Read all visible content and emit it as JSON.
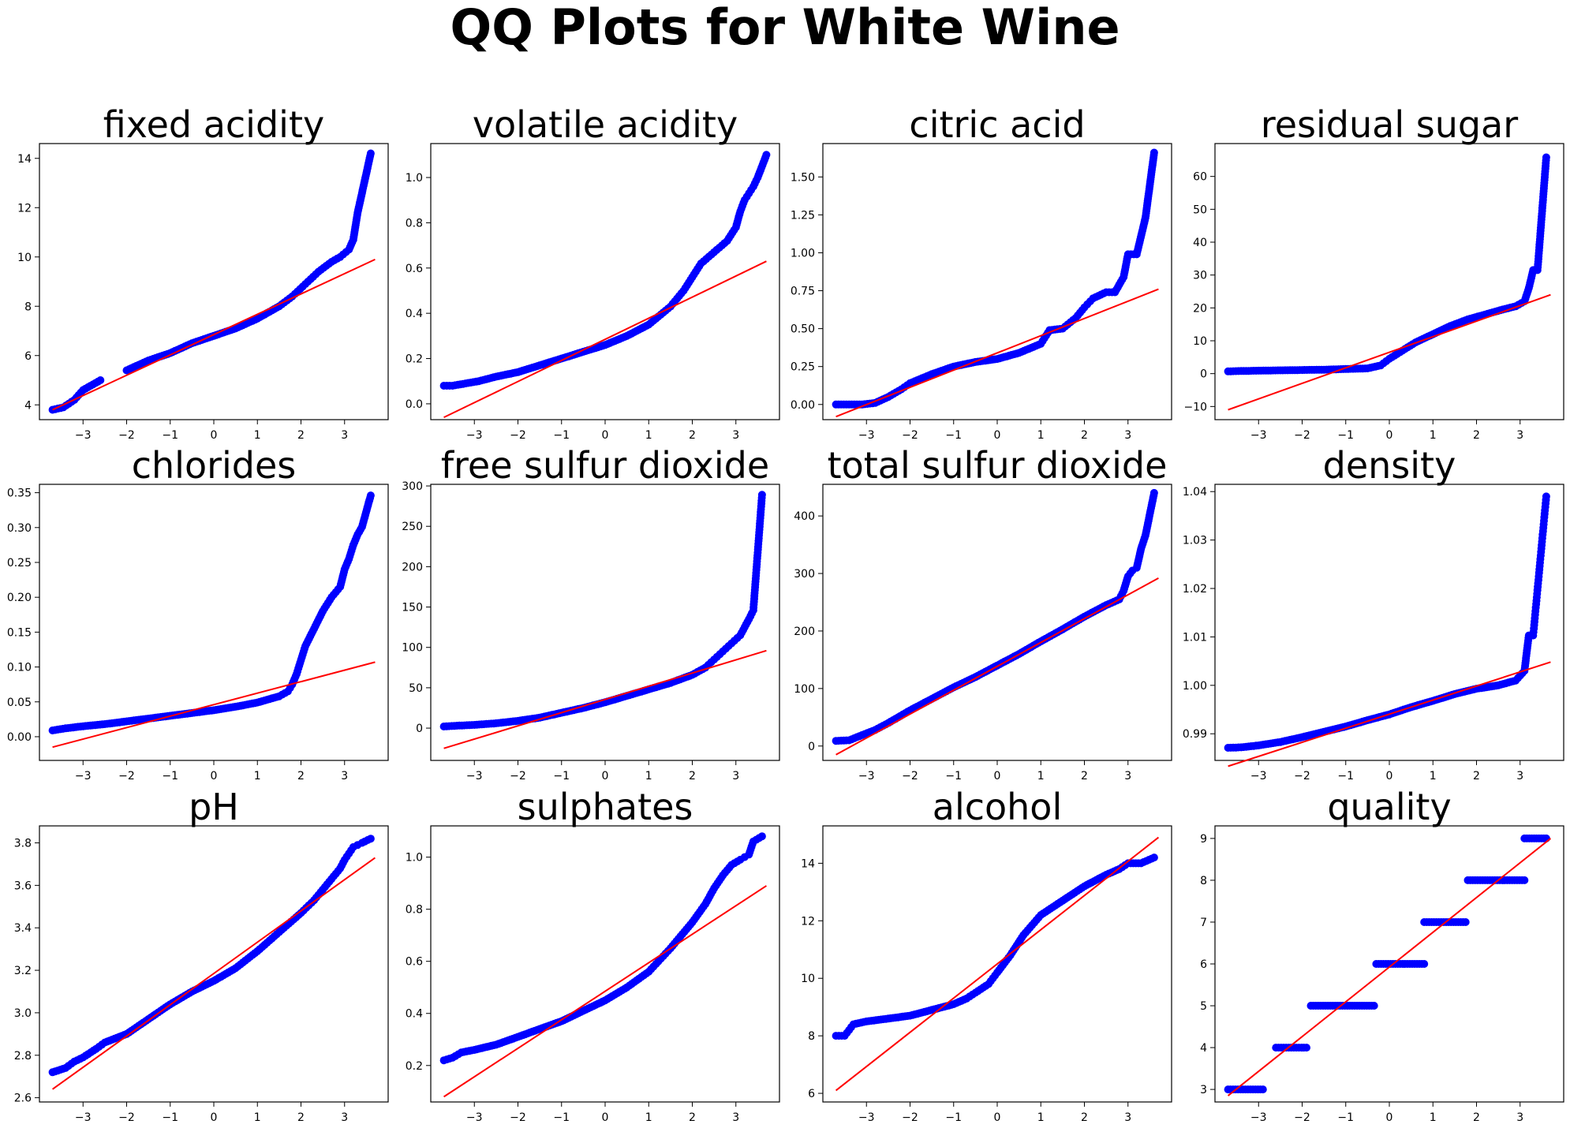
{
  "figure": {
    "title": "QQ Plots for White Wine",
    "colors": {
      "points": "#0000ff",
      "fit_line": "#ff0000",
      "frame": "#000000"
    }
  },
  "chart_data": [
    {
      "type": "scatter",
      "title": "fixed acidity",
      "xticks": [
        -3,
        -2,
        -1,
        0,
        1,
        2,
        3
      ],
      "yticks": [
        4,
        6,
        8,
        10,
        12,
        14
      ],
      "ytick_labels": [
        "4",
        "6",
        "8",
        "10",
        "12",
        "14"
      ],
      "xlim": [
        -4.0,
        4.0
      ],
      "ylim": [
        3.4,
        14.6
      ],
      "fit_line": {
        "x": [
          -3.7,
          3.7
        ],
        "y": [
          3.8,
          9.9
        ]
      },
      "points": {
        "x": [
          -3.7,
          -3.45,
          -3.2,
          -3.0,
          -2.6,
          -2.0,
          -1.5,
          -1.0,
          -0.5,
          0.0,
          0.5,
          1.0,
          1.5,
          1.8,
          2.1,
          2.4,
          2.7,
          2.9,
          3.1,
          3.2,
          3.3,
          3.6
        ],
        "y": [
          3.8,
          3.9,
          4.2,
          4.6,
          5.0,
          5.4,
          5.8,
          6.1,
          6.5,
          6.8,
          7.1,
          7.5,
          8.0,
          8.4,
          8.9,
          9.4,
          9.8,
          10.0,
          10.3,
          10.7,
          11.8,
          14.2
        ]
      }
    },
    {
      "type": "scatter",
      "title": "volatile acidity",
      "xticks": [
        -3,
        -2,
        -1,
        0,
        1,
        2,
        3
      ],
      "yticks": [
        0.0,
        0.2,
        0.4,
        0.6,
        0.8,
        1.0
      ],
      "ytick_labels": [
        "0.0",
        "0.2",
        "0.4",
        "0.6",
        "0.8",
        "1.0"
      ],
      "xlim": [
        -4.0,
        4.0
      ],
      "ylim": [
        -0.07,
        1.15
      ],
      "fit_line": {
        "x": [
          -3.7,
          3.7
        ],
        "y": [
          -0.06,
          0.63
        ]
      },
      "points": {
        "x": [
          -3.7,
          -3.5,
          -3.2,
          -2.9,
          -2.5,
          -2.0,
          -1.5,
          -1.0,
          -0.5,
          0.0,
          0.5,
          1.0,
          1.5,
          1.8,
          2.0,
          2.2,
          2.5,
          2.8,
          3.0,
          3.1,
          3.2,
          3.3,
          3.4,
          3.5,
          3.7
        ],
        "y": [
          0.08,
          0.08,
          0.09,
          0.1,
          0.12,
          0.14,
          0.17,
          0.2,
          0.23,
          0.26,
          0.3,
          0.35,
          0.43,
          0.5,
          0.56,
          0.62,
          0.67,
          0.72,
          0.78,
          0.85,
          0.9,
          0.93,
          0.96,
          1.0,
          1.1
        ]
      }
    },
    {
      "type": "scatter",
      "title": "citric acid",
      "xticks": [
        -3,
        -2,
        -1,
        0,
        1,
        2,
        3
      ],
      "yticks": [
        0.0,
        0.25,
        0.5,
        0.75,
        1.0,
        1.25,
        1.5
      ],
      "ytick_labels": [
        "0.00",
        "0.25",
        "0.50",
        "0.75",
        "1.00",
        "1.25",
        "1.50"
      ],
      "xlim": [
        -4.0,
        4.0
      ],
      "ylim": [
        -0.1,
        1.72
      ],
      "fit_line": {
        "x": [
          -3.7,
          3.7
        ],
        "y": [
          -0.08,
          0.76
        ]
      },
      "points": {
        "x": [
          -3.7,
          -3.4,
          -3.1,
          -2.8,
          -2.5,
          -2.2,
          -2.0,
          -1.5,
          -1.0,
          -0.5,
          0.0,
          0.5,
          1.0,
          1.2,
          1.5,
          1.8,
          2.0,
          2.2,
          2.5,
          2.7,
          2.9,
          3.0,
          3.2,
          3.4,
          3.6
        ],
        "y": [
          0.0,
          0.0,
          0.0,
          0.01,
          0.05,
          0.1,
          0.14,
          0.2,
          0.25,
          0.28,
          0.3,
          0.34,
          0.4,
          0.49,
          0.5,
          0.57,
          0.64,
          0.7,
          0.74,
          0.74,
          0.84,
          0.99,
          0.99,
          1.23,
          1.66
        ]
      }
    },
    {
      "type": "scatter",
      "title": "residual sugar",
      "xticks": [
        -3,
        -2,
        -1,
        0,
        1,
        2,
        3
      ],
      "yticks": [
        -10,
        0,
        10,
        20,
        30,
        40,
        50,
        60
      ],
      "ytick_labels": [
        "−10",
        "0",
        "10",
        "20",
        "30",
        "40",
        "50",
        "60"
      ],
      "xlim": [
        -4.0,
        4.0
      ],
      "ylim": [
        -14,
        70
      ],
      "fit_line": {
        "x": [
          -3.7,
          3.7
        ],
        "y": [
          -11,
          24
        ]
      },
      "points": {
        "x": [
          -3.7,
          -3.4,
          -3.0,
          -2.5,
          -2.0,
          -1.5,
          -1.0,
          -0.5,
          -0.2,
          0.0,
          0.3,
          0.6,
          1.0,
          1.4,
          1.8,
          2.2,
          2.6,
          2.9,
          3.1,
          3.2,
          3.3,
          3.4,
          3.6
        ],
        "y": [
          0.7,
          0.8,
          0.9,
          1.0,
          1.1,
          1.2,
          1.4,
          1.6,
          2.5,
          4.5,
          7.0,
          9.5,
          12.0,
          14.5,
          16.5,
          18.0,
          19.5,
          20.5,
          22.0,
          26.0,
          31.5,
          31.5,
          65.8
        ]
      }
    },
    {
      "type": "scatter",
      "title": "chlorides",
      "xticks": [
        -3,
        -2,
        -1,
        0,
        1,
        2,
        3
      ],
      "yticks": [
        0.0,
        0.05,
        0.1,
        0.15,
        0.2,
        0.25,
        0.3,
        0.35
      ],
      "ytick_labels": [
        "0.00",
        "0.05",
        "0.10",
        "0.15",
        "0.20",
        "0.25",
        "0.30",
        "0.35"
      ],
      "xlim": [
        -4.0,
        4.0
      ],
      "ylim": [
        -0.034,
        0.362
      ],
      "fit_line": {
        "x": [
          -3.7,
          3.7
        ],
        "y": [
          -0.015,
          0.107
        ]
      },
      "points": {
        "x": [
          -3.7,
          -3.4,
          -3.0,
          -2.5,
          -2.0,
          -1.5,
          -1.0,
          -0.5,
          0.0,
          0.5,
          1.0,
          1.5,
          1.7,
          1.8,
          1.9,
          2.0,
          2.1,
          2.3,
          2.5,
          2.7,
          2.9,
          3.0,
          3.1,
          3.2,
          3.3,
          3.4,
          3.6
        ],
        "y": [
          0.009,
          0.012,
          0.015,
          0.018,
          0.022,
          0.026,
          0.03,
          0.034,
          0.038,
          0.043,
          0.049,
          0.058,
          0.065,
          0.075,
          0.09,
          0.11,
          0.13,
          0.155,
          0.18,
          0.2,
          0.215,
          0.24,
          0.255,
          0.275,
          0.29,
          0.301,
          0.346
        ]
      }
    },
    {
      "type": "scatter",
      "title": "free sulfur dioxide",
      "xticks": [
        -3,
        -2,
        -1,
        0,
        1,
        2,
        3
      ],
      "yticks": [
        0,
        50,
        100,
        150,
        200,
        250,
        300
      ],
      "ytick_labels": [
        "0",
        "50",
        "100",
        "150",
        "200",
        "250",
        "300"
      ],
      "xlim": [
        -4.0,
        4.0
      ],
      "ylim": [
        -40,
        302
      ],
      "fit_line": {
        "x": [
          -3.7,
          3.7
        ],
        "y": [
          -25,
          96
        ]
      },
      "points": {
        "x": [
          -3.7,
          -3.4,
          -3.0,
          -2.5,
          -2.0,
          -1.5,
          -1.0,
          -0.5,
          0.0,
          0.5,
          1.0,
          1.5,
          2.0,
          2.3,
          2.5,
          2.7,
          2.9,
          3.1,
          3.2,
          3.3,
          3.4,
          3.6
        ],
        "y": [
          2,
          3,
          4,
          6,
          9,
          13,
          19,
          25,
          32,
          40,
          48,
          56,
          66,
          75,
          85,
          95,
          105,
          115,
          125,
          135,
          146,
          289
        ]
      }
    },
    {
      "type": "scatter",
      "title": "total sulfur dioxide",
      "xticks": [
        -3,
        -2,
        -1,
        0,
        1,
        2,
        3
      ],
      "yticks": [
        0,
        100,
        200,
        300,
        400
      ],
      "ytick_labels": [
        "0",
        "100",
        "200",
        "300",
        "400"
      ],
      "xlim": [
        -4.0,
        4.0
      ],
      "ylim": [
        -25,
        455
      ],
      "fit_line": {
        "x": [
          -3.7,
          3.7
        ],
        "y": [
          -15,
          292
        ]
      },
      "points": {
        "x": [
          -3.7,
          -3.4,
          -3.1,
          -2.8,
          -2.5,
          -2.0,
          -1.5,
          -1.0,
          -0.5,
          0.0,
          0.5,
          1.0,
          1.5,
          2.0,
          2.5,
          2.8,
          2.9,
          3.0,
          3.1,
          3.2,
          3.3,
          3.4,
          3.6
        ],
        "y": [
          9,
          10,
          19,
          28,
          40,
          62,
          82,
          102,
          120,
          140,
          160,
          182,
          203,
          225,
          245,
          255,
          270,
          295,
          305,
          310,
          343,
          366,
          440
        ]
      }
    },
    {
      "type": "scatter",
      "title": "density",
      "xticks": [
        -3,
        -2,
        -1,
        0,
        1,
        2,
        3
      ],
      "yticks": [
        0.99,
        1.0,
        1.01,
        1.02,
        1.03,
        1.04
      ],
      "ytick_labels": [
        "0.99",
        "1.00",
        "1.01",
        "1.02",
        "1.03",
        "1.04"
      ],
      "xlim": [
        -4.0,
        4.0
      ],
      "ylim": [
        0.9845,
        1.0415
      ],
      "fit_line": {
        "x": [
          -3.7,
          3.7
        ],
        "y": [
          0.9833,
          1.0048
        ]
      },
      "points": {
        "x": [
          -3.7,
          -3.4,
          -3.0,
          -2.5,
          -2.0,
          -1.5,
          -1.0,
          -0.5,
          0.0,
          0.5,
          1.0,
          1.5,
          2.0,
          2.5,
          2.9,
          3.1,
          3.2,
          3.3,
          3.6
        ],
        "y": [
          0.9871,
          0.9872,
          0.9876,
          0.9883,
          0.9893,
          0.9904,
          0.9915,
          0.9928,
          0.994,
          0.9955,
          0.9968,
          0.9982,
          0.9993,
          1.0,
          1.001,
          1.003,
          1.0103,
          1.0103,
          1.039
        ]
      }
    },
    {
      "type": "scatter",
      "title": "pH",
      "xticks": [
        -3,
        -2,
        -1,
        0,
        1,
        2,
        3
      ],
      "yticks": [
        2.6,
        2.8,
        3.0,
        3.2,
        3.4,
        3.6,
        3.8
      ],
      "ytick_labels": [
        "2.6",
        "2.8",
        "3.0",
        "3.2",
        "3.4",
        "3.6",
        "3.8"
      ],
      "xlim": [
        -4.0,
        4.0
      ],
      "ylim": [
        2.58,
        3.88
      ],
      "fit_line": {
        "x": [
          -3.7,
          3.7
        ],
        "y": [
          2.64,
          3.73
        ]
      },
      "points": {
        "x": [
          -3.7,
          -3.4,
          -3.2,
          -3.0,
          -2.7,
          -2.5,
          -2.0,
          -1.5,
          -1.0,
          -0.5,
          0.0,
          0.5,
          1.0,
          1.5,
          2.0,
          2.3,
          2.5,
          2.7,
          2.9,
          3.0,
          3.1,
          3.2,
          3.3,
          3.4,
          3.6
        ],
        "y": [
          2.72,
          2.74,
          2.77,
          2.79,
          2.83,
          2.86,
          2.9,
          2.97,
          3.04,
          3.1,
          3.15,
          3.21,
          3.29,
          3.38,
          3.47,
          3.53,
          3.58,
          3.63,
          3.68,
          3.72,
          3.75,
          3.78,
          3.79,
          3.8,
          3.82
        ]
      }
    },
    {
      "type": "scatter",
      "title": "sulphates",
      "xticks": [
        -3,
        -2,
        -1,
        0,
        1,
        2,
        3
      ],
      "yticks": [
        0.2,
        0.4,
        0.6,
        0.8,
        1.0
      ],
      "ytick_labels": [
        "0.2",
        "0.4",
        "0.6",
        "0.8",
        "1.0"
      ],
      "xlim": [
        -4.0,
        4.0
      ],
      "ylim": [
        0.06,
        1.12
      ],
      "fit_line": {
        "x": [
          -3.7,
          3.7
        ],
        "y": [
          0.08,
          0.89
        ]
      },
      "points": {
        "x": [
          -3.7,
          -3.5,
          -3.3,
          -3.0,
          -2.5,
          -2.0,
          -1.5,
          -1.0,
          -0.5,
          0.0,
          0.5,
          1.0,
          1.5,
          2.0,
          2.3,
          2.5,
          2.7,
          2.9,
          3.1,
          3.2,
          3.3,
          3.4,
          3.6
        ],
        "y": [
          0.22,
          0.23,
          0.25,
          0.26,
          0.28,
          0.31,
          0.34,
          0.37,
          0.41,
          0.45,
          0.5,
          0.56,
          0.65,
          0.75,
          0.82,
          0.88,
          0.93,
          0.97,
          0.99,
          1.0,
          1.01,
          1.06,
          1.08
        ]
      }
    },
    {
      "type": "scatter",
      "title": "alcohol",
      "xticks": [
        -3,
        -2,
        -1,
        0,
        1,
        2,
        3
      ],
      "yticks": [
        6,
        8,
        10,
        12,
        14
      ],
      "ytick_labels": [
        "6",
        "8",
        "10",
        "12",
        "14"
      ],
      "xlim": [
        -4.0,
        4.0
      ],
      "ylim": [
        5.7,
        15.3
      ],
      "fit_line": {
        "x": [
          -3.7,
          3.7
        ],
        "y": [
          6.1,
          14.9
        ]
      },
      "points": {
        "x": [
          -3.7,
          -3.5,
          -3.3,
          -3.0,
          -2.5,
          -2.0,
          -1.5,
          -1.0,
          -0.7,
          -0.5,
          -0.2,
          0.0,
          0.3,
          0.6,
          1.0,
          1.5,
          2.0,
          2.5,
          2.8,
          3.0,
          3.3,
          3.6
        ],
        "y": [
          8.0,
          8.0,
          8.4,
          8.5,
          8.6,
          8.7,
          8.9,
          9.1,
          9.3,
          9.5,
          9.8,
          10.2,
          10.8,
          11.5,
          12.2,
          12.7,
          13.2,
          13.6,
          13.8,
          14.0,
          14.0,
          14.2
        ]
      }
    },
    {
      "type": "scatter",
      "title": "quality",
      "xticks": [
        -3,
        -2,
        -1,
        0,
        1,
        2,
        3
      ],
      "yticks": [
        3,
        4,
        5,
        6,
        7,
        8,
        9
      ],
      "ytick_labels": [
        "3",
        "4",
        "5",
        "6",
        "7",
        "8",
        "9"
      ],
      "xlim": [
        -4.0,
        4.0
      ],
      "ylim": [
        2.7,
        9.3
      ],
      "fit_line": {
        "x": [
          -3.7,
          3.7
        ],
        "y": [
          2.85,
          9.0
        ]
      },
      "steps": [
        {
          "y": 3,
          "x_from": -3.7,
          "x_to": -2.9
        },
        {
          "y": 4,
          "x_from": -2.6,
          "x_to": -1.9
        },
        {
          "y": 5,
          "x_from": -1.8,
          "x_to": -0.35
        },
        {
          "y": 6,
          "x_from": -0.3,
          "x_to": 0.8
        },
        {
          "y": 7,
          "x_from": 0.8,
          "x_to": 1.75
        },
        {
          "y": 8,
          "x_from": 1.8,
          "x_to": 3.1
        },
        {
          "y": 9,
          "x_from": 3.1,
          "x_to": 3.6
        }
      ]
    }
  ]
}
